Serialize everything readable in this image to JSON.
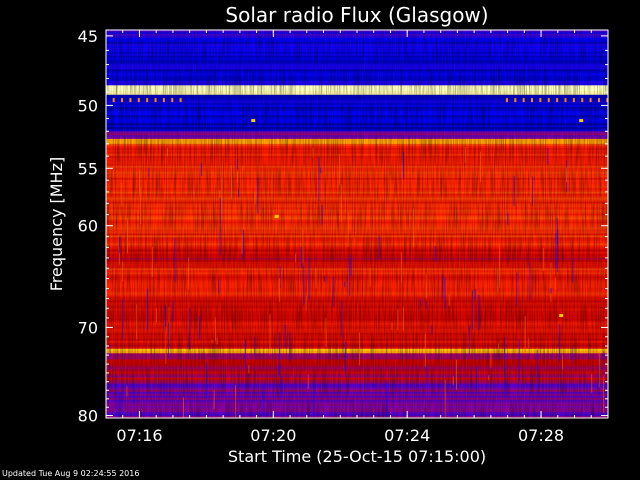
{
  "chart_data": {
    "type": "heatmap",
    "title": "Solar radio Flux (Glasgow)",
    "xlabel": "Start Time (25-Oct-15 07:15:00)",
    "ylabel": "Frequency [MHz]",
    "x_range_min": [
      15.0,
      30.0
    ],
    "y_range_mhz": [
      44.6,
      80.3
    ],
    "y_ticks": [
      45,
      50,
      55,
      60,
      70,
      80
    ],
    "x_ticks": [
      {
        "minute": 16,
        "label": "07:16"
      },
      {
        "minute": 20,
        "label": "07:20"
      },
      {
        "minute": 24,
        "label": "07:24"
      },
      {
        "minute": 28,
        "label": "07:28"
      }
    ],
    "y_scale": "log",
    "colormap": [
      "#000080",
      "#0000ff",
      "#8000b0",
      "#cc0000",
      "#ff2000",
      "#ff7000",
      "#ffd000",
      "#ffffc0"
    ],
    "intensity_bands": [
      {
        "f1": 44.6,
        "f2": 45.0,
        "level": 0.2
      },
      {
        "f1": 45.0,
        "f2": 48.5,
        "level": 0.12
      },
      {
        "f1": 48.5,
        "f2": 49.2,
        "level": 1.0
      },
      {
        "f1": 49.2,
        "f2": 52.0,
        "level": 0.1
      },
      {
        "f1": 52.0,
        "f2": 52.6,
        "level": 0.3
      },
      {
        "f1": 52.6,
        "f2": 53.0,
        "level": 0.8
      },
      {
        "f1": 53.0,
        "f2": 62.0,
        "level": 0.58
      },
      {
        "f1": 62.0,
        "f2": 64.0,
        "level": 0.46
      },
      {
        "f1": 64.0,
        "f2": 67.0,
        "level": 0.55
      },
      {
        "f1": 67.0,
        "f2": 72.3,
        "level": 0.48
      },
      {
        "f1": 72.3,
        "f2": 72.8,
        "level": 0.85
      },
      {
        "f1": 72.8,
        "f2": 76.0,
        "level": 0.4
      },
      {
        "f1": 76.0,
        "f2": 80.3,
        "level": 0.28
      }
    ]
  },
  "footer": {
    "updated": "Updated Tue Aug  9 02:24:55 2016"
  }
}
